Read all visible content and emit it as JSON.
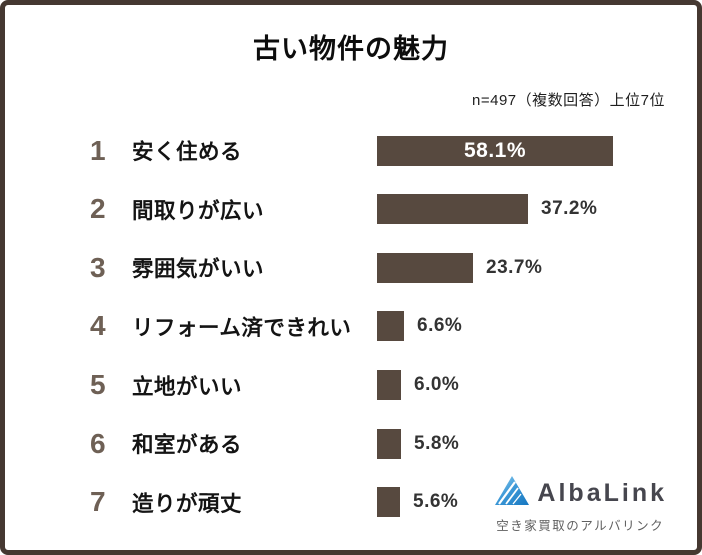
{
  "header": {
    "title": "古い物件の魅力",
    "note": "n=497（複数回答）上位7位"
  },
  "chart_data": {
    "type": "bar",
    "orientation": "horizontal",
    "title": "古い物件の魅力",
    "subtitle": "n=497（複数回答）上位7位",
    "categories": [
      "安く住める",
      "間取りが広い",
      "雰囲気がいい",
      "リフォーム済できれい",
      "立地がいい",
      "和室がある",
      "造りが頑丈"
    ],
    "ranks": [
      1,
      2,
      3,
      4,
      5,
      6,
      7
    ],
    "values": [
      58.1,
      37.2,
      23.7,
      6.6,
      6.0,
      5.8,
      5.6
    ],
    "value_labels": [
      "58.1%",
      "37.2%",
      "23.7%",
      "6.6%",
      "6.0%",
      "5.8%",
      "5.6%"
    ],
    "xlim": [
      0,
      65
    ],
    "grid": false,
    "legend": false,
    "bar_color": "#57493f",
    "first_value_label_position": "inside-center-white",
    "other_value_label_position": "outside-right"
  },
  "rows": [
    {
      "rank": "1",
      "label": "安く住める",
      "value": 58.1,
      "value_label": "58.1%"
    },
    {
      "rank": "2",
      "label": "間取りが広い",
      "value": 37.2,
      "value_label": "37.2%"
    },
    {
      "rank": "3",
      "label": "雰囲気がいい",
      "value": 23.7,
      "value_label": "23.7%"
    },
    {
      "rank": "4",
      "label": "リフォーム済できれい",
      "value": 6.6,
      "value_label": "6.6%"
    },
    {
      "rank": "5",
      "label": "立地がいい",
      "value": 6.0,
      "value_label": "6.0%"
    },
    {
      "rank": "6",
      "label": "和室がある",
      "value": 5.8,
      "value_label": "5.8%"
    },
    {
      "rank": "7",
      "label": "造りが頑丈",
      "value": 5.6,
      "value_label": "5.6%"
    }
  ],
  "logo": {
    "wordmark": "AlbaLink",
    "tagline": "空き家買取のアルバリンク",
    "icon": "mountain-triangle-icon",
    "colors": {
      "blue_light": "#9fd8f2",
      "blue_dark": "#1576c0",
      "text": "#46464e"
    }
  },
  "colors": {
    "frame_border": "#453831",
    "background": "#ffffff",
    "bar": "#57493f",
    "rank_text": "#6e6055",
    "category_text": "#141414",
    "value_text": "#333333",
    "inside_value_text": "#ffffff"
  }
}
